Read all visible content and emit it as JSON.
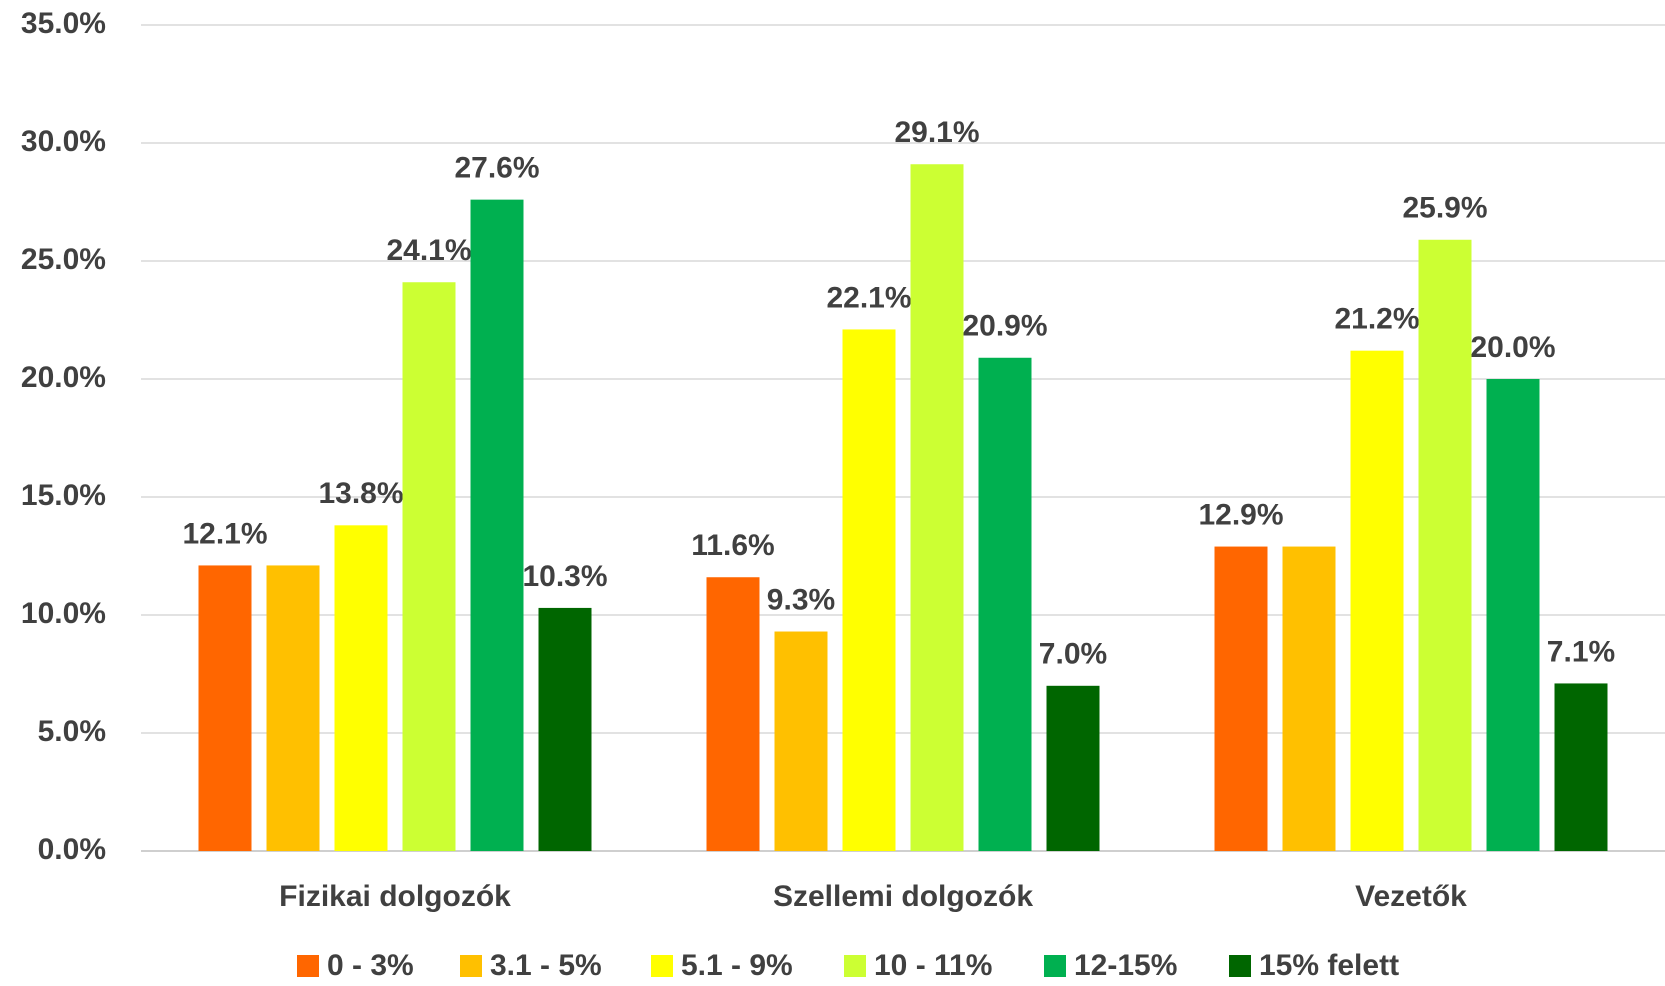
{
  "chart_data": {
    "type": "bar",
    "categories": [
      "Fizikai dolgozók",
      "Szellemi dolgozók",
      "Vezetők"
    ],
    "series": [
      {
        "name": "0 - 3%",
        "color": "#ff6600",
        "values": [
          12.1,
          11.6,
          12.9
        ],
        "value_labels": [
          "12.1%",
          "11.6%",
          "12.9%"
        ]
      },
      {
        "name": "3.1 - 5%",
        "color": "#ffc000",
        "values": [
          12.1,
          9.3,
          12.9
        ],
        "value_labels": [
          null,
          "9.3%",
          null
        ]
      },
      {
        "name": "5.1 - 9%",
        "color": "#ffff00",
        "values": [
          13.8,
          22.1,
          21.2
        ],
        "value_labels": [
          "13.8%",
          "22.1%",
          "21.2%"
        ]
      },
      {
        "name": "10 - 11%",
        "color": "#ccff33",
        "values": [
          24.1,
          29.1,
          25.9
        ],
        "value_labels": [
          "24.1%",
          "29.1%",
          "25.9%"
        ]
      },
      {
        "name": "12-15%",
        "color": "#00b050",
        "values": [
          27.6,
          20.9,
          20.0
        ],
        "value_labels": [
          "27.6%",
          "20.9%",
          "20.0%"
        ]
      },
      {
        "name": "15% felett",
        "color": "#006600",
        "values": [
          10.3,
          7.0,
          7.1
        ],
        "value_labels": [
          "10.3%",
          "7.0%",
          "7.1%"
        ]
      }
    ],
    "ylim": [
      0,
      35
    ],
    "yticks": [
      {
        "value": 0,
        "label": "0.0%"
      },
      {
        "value": 5,
        "label": "5.0%"
      },
      {
        "value": 10,
        "label": "10.0%"
      },
      {
        "value": 15,
        "label": "15.0%"
      },
      {
        "value": 20,
        "label": "20.0%"
      },
      {
        "value": 25,
        "label": "25.0%"
      },
      {
        "value": 30,
        "label": "30.0%"
      },
      {
        "value": 35,
        "label": "35.0%"
      }
    ],
    "grid": true,
    "legend": "bottom"
  }
}
